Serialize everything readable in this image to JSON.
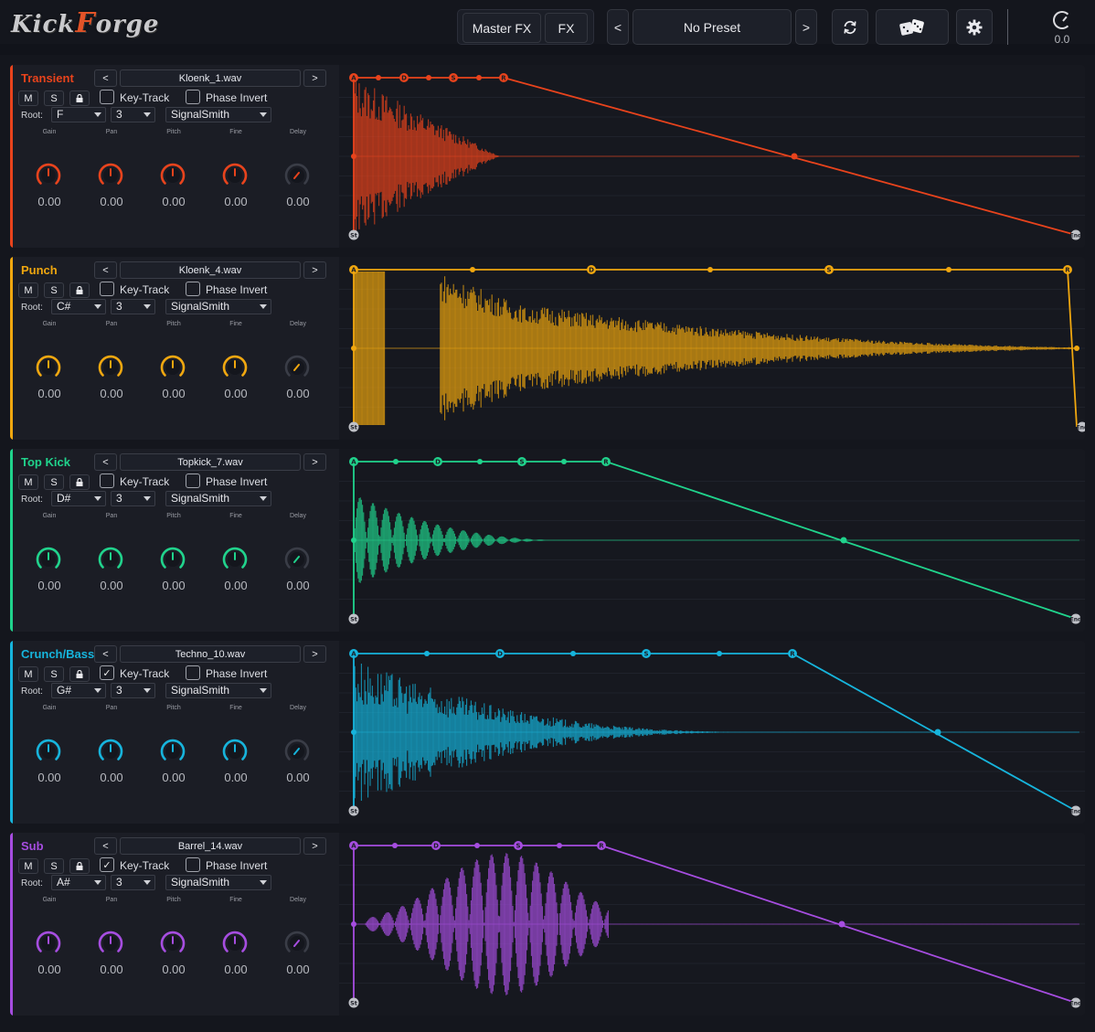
{
  "topbar": {
    "logo": "KickForge",
    "master_fx_label": "Master FX",
    "fx_label": "FX",
    "prev_preset_label": "<",
    "preset_name": "No Preset",
    "next_preset_label": ">",
    "refresh_icon": "refresh-icon",
    "dice_icon": "dice-icon",
    "settings_icon": "gear-icon",
    "volume_value": "0.0"
  },
  "common": {
    "mute_label": "M",
    "solo_label": "S",
    "lock_icon": "lock-icon",
    "prev_label": "<",
    "next_label": ">",
    "key_track_label": "Key-Track",
    "phase_invert_label": "Phase Invert",
    "root_label": "Root:",
    "param_labels": [
      "Gain",
      "Pan",
      "Pitch",
      "Fine",
      "Delay"
    ],
    "start_marker": "St",
    "end_marker": "End",
    "env_labels": [
      "A",
      "D",
      "S",
      "R"
    ]
  },
  "layers": [
    {
      "name": "Transient",
      "color": "#e8431c",
      "file": "Kloenk_1.wav",
      "key_track": false,
      "phase_invert": false,
      "root_note": "F",
      "octave": "3",
      "algorithm": "SignalSmith",
      "knob_values": [
        "0.00",
        "0.00",
        "0.00",
        "0.00",
        "0.00"
      ]
    },
    {
      "name": "Punch",
      "color": "#f0a70f",
      "file": "Kloenk_4.wav",
      "key_track": false,
      "phase_invert": false,
      "root_note": "C#",
      "octave": "3",
      "algorithm": "SignalSmith",
      "knob_values": [
        "0.00",
        "0.00",
        "0.00",
        "0.00",
        "0.00"
      ]
    },
    {
      "name": "Top Kick",
      "color": "#20d38c",
      "file": "Topkick_7.wav",
      "key_track": false,
      "phase_invert": false,
      "root_note": "D#",
      "octave": "3",
      "algorithm": "SignalSmith",
      "knob_values": [
        "0.00",
        "0.00",
        "0.00",
        "0.00",
        "0.00"
      ]
    },
    {
      "name": "Crunch/Bass",
      "color": "#16b4dc",
      "file": "Techno_10.wav",
      "key_track": true,
      "phase_invert": false,
      "root_note": "G#",
      "octave": "3",
      "algorithm": "SignalSmith",
      "knob_values": [
        "0.00",
        "0.00",
        "0.00",
        "0.00",
        "0.00"
      ]
    },
    {
      "name": "Sub",
      "color": "#a64de0",
      "file": "Barrel_14.wav",
      "key_track": true,
      "phase_invert": false,
      "root_note": "A#",
      "octave": "3",
      "algorithm": "SignalSmith",
      "knob_values": [
        "0.00",
        "0.00",
        "0.00",
        "0.00",
        "0.00"
      ]
    }
  ]
}
